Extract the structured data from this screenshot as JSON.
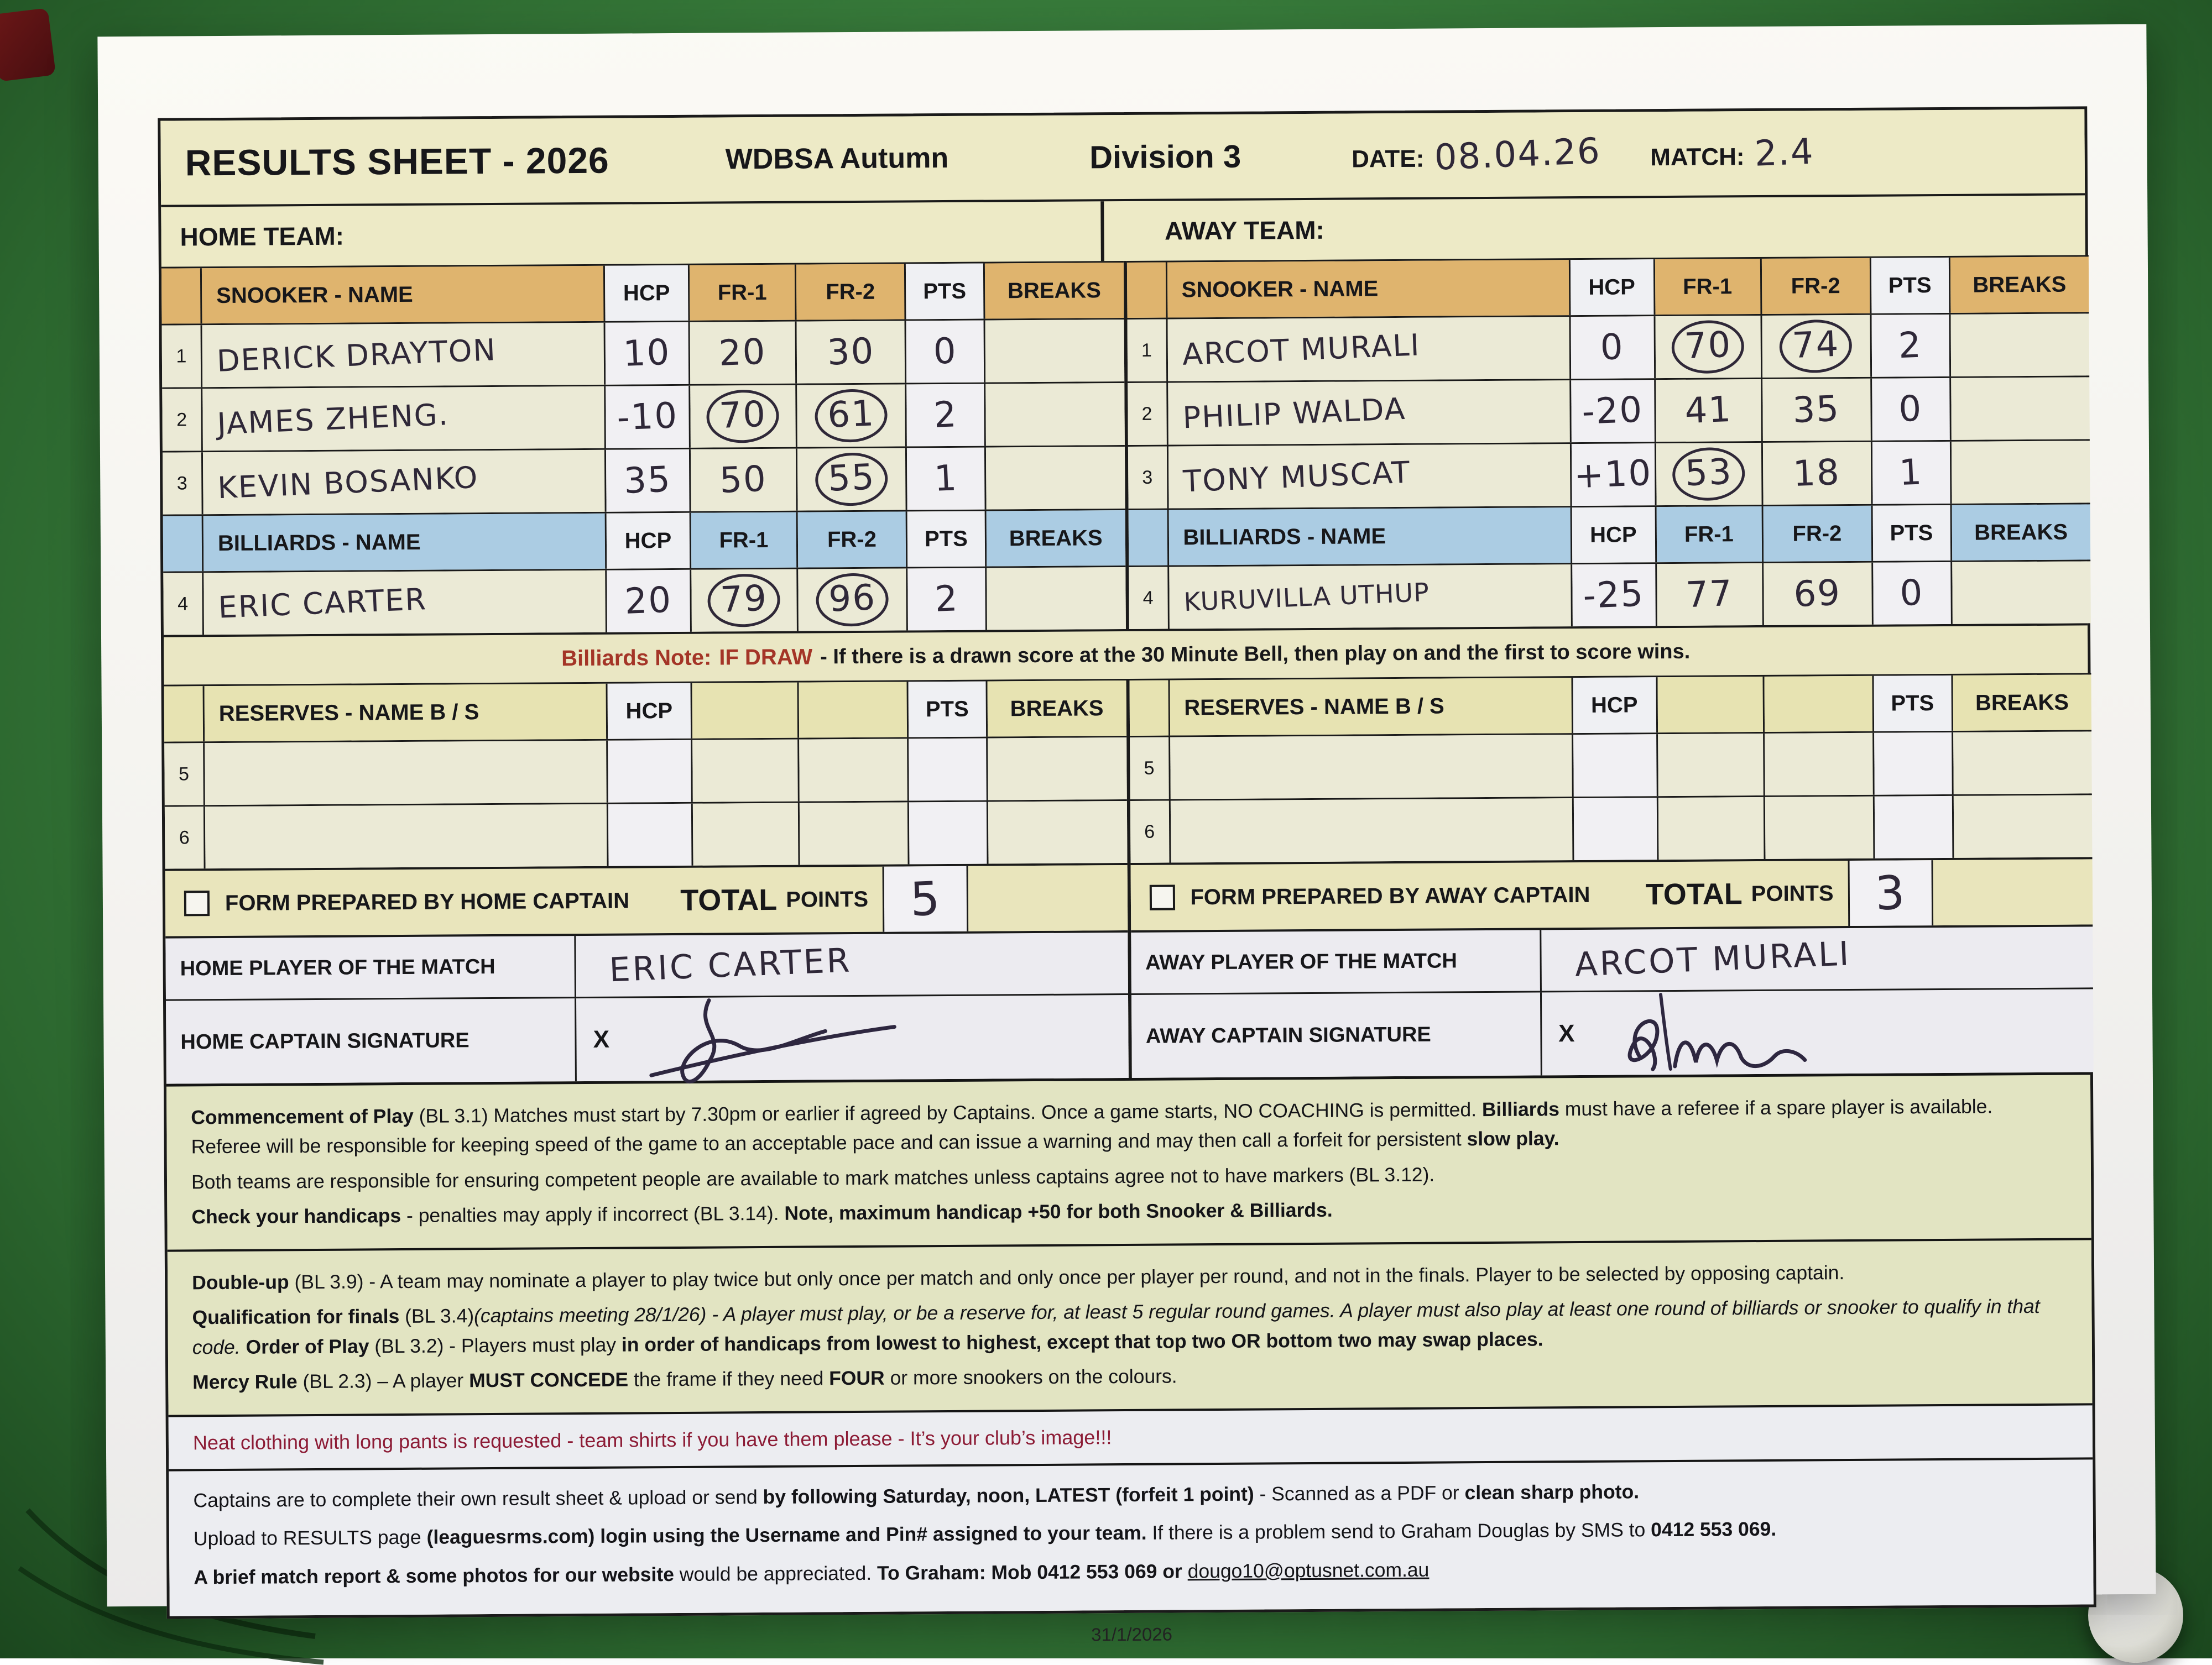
{
  "colors": {
    "felt_green": "#3a7f3d",
    "paper_cream": "#eae7c6",
    "snooker_header_tan": "#dfb46e",
    "billiards_header_blue": "#abcce3",
    "reserves_header_yellow": "#e7e3b2",
    "note_red": "#a43527",
    "dress_note_maroon": "#8c1b35",
    "ink": "#2f2838"
  },
  "header": {
    "title": "RESULTS SHEET - 2026",
    "season": "WDBSA Autumn",
    "division": "Division 3",
    "date_label": "DATE:",
    "date_value": "08.04.26",
    "match_label": "MATCH:",
    "match_value": "2.4"
  },
  "columns": {
    "name_snooker": "SNOOKER  -  NAME",
    "name_billiards": "BILLIARDS  -  NAME",
    "name_reserves": "RESERVES  -  NAME B / S",
    "hcp": "HCP",
    "fr1": "FR-1",
    "fr2": "FR-2",
    "pts": "PTS",
    "breaks": "BREAKS"
  },
  "home": {
    "team_label": "HOME TEAM:",
    "snooker_rows": [
      {
        "num": "1",
        "name": "DERICK DRAYTON",
        "hcp": "10",
        "fr1": "20",
        "fr1_circled": false,
        "fr2": "30",
        "fr2_circled": false,
        "pts": "0"
      },
      {
        "num": "2",
        "name": "JAMES ZHENG.",
        "hcp": "-10",
        "fr1": "70",
        "fr1_circled": true,
        "fr2": "61",
        "fr2_circled": true,
        "pts": "2"
      },
      {
        "num": "3",
        "name": "KEVIN BOSANKO",
        "hcp": "35",
        "fr1": "50",
        "fr1_circled": false,
        "fr2": "55",
        "fr2_circled": true,
        "pts": "1"
      }
    ],
    "billiards_row": {
      "num": "4",
      "name": "ERIC CARTER",
      "hcp": "20",
      "fr1": "79",
      "fr1_circled": true,
      "fr2": "96",
      "fr2_circled": true,
      "pts": "2"
    },
    "reserve_rows": [
      {
        "num": "5"
      },
      {
        "num": "6"
      }
    ],
    "form_prepared_label": "FORM PREPARED BY HOME CAPTAIN",
    "total_label": "TOTAL",
    "points_label": "POINTS",
    "total_value": "5",
    "potm_label": "HOME PLAYER OF THE MATCH",
    "potm_value": "ERIC CARTER",
    "signature_label": "HOME CAPTAIN SIGNATURE",
    "signature_x": "X"
  },
  "away": {
    "team_label": "AWAY TEAM:",
    "snooker_rows": [
      {
        "num": "1",
        "name": "ARCOT MURALI",
        "hcp": "0",
        "fr1": "70",
        "fr1_circled": true,
        "fr2": "74",
        "fr2_circled": true,
        "pts": "2"
      },
      {
        "num": "2",
        "name": "PHILIP WALDA",
        "hcp": "-20",
        "fr1": "41",
        "fr1_circled": false,
        "fr2": "35",
        "fr2_circled": false,
        "pts": "0"
      },
      {
        "num": "3",
        "name": "TONY MUSCAT",
        "hcp": "+10",
        "fr1": "53",
        "fr1_circled": true,
        "fr2": "18",
        "fr2_circled": false,
        "pts": "1"
      }
    ],
    "billiards_row": {
      "num": "4",
      "name": "KURUVILLA UTHUP",
      "hcp": "-25",
      "fr1": "77",
      "fr1_circled": false,
      "fr2": "69",
      "fr2_circled": false,
      "pts": "0"
    },
    "reserve_rows": [
      {
        "num": "5"
      },
      {
        "num": "6"
      }
    ],
    "form_prepared_label": "FORM PREPARED BY AWAY CAPTAIN",
    "total_label": "TOTAL",
    "points_label": "POINTS",
    "total_value": "3",
    "potm_label": "AWAY PLAYER OF THE MATCH",
    "potm_value": "ARCOT MURALI",
    "signature_label": "AWAY CAPTAIN SIGNATURE",
    "signature_x": "X"
  },
  "billiards_note": {
    "label": "Billiards Note:",
    "draw": "IF DRAW",
    "text": "- If there is a drawn score at the 30 Minute Bell, then play on and the first to score wins."
  },
  "rules": {
    "p1": [
      [
        {
          "b": 1,
          "t": "Commencement of Play"
        },
        {
          "t": " (BL 3.1) Matches must start by 7.30pm or earlier if agreed by Captains. Once a game starts, NO COACHING is permitted. "
        },
        {
          "b": 1,
          "t": "Billiards"
        },
        {
          "t": " must have a referee if a spare player is available. Referee will be responsible for keeping speed of the game to an acceptable pace and can issue a warning and may then call a forfeit for persistent "
        },
        {
          "b": 1,
          "t": "slow play."
        }
      ],
      [
        {
          "t": "Both teams are responsible for ensuring competent people are available to mark matches unless captains agree not to have markers (BL 3.12)."
        }
      ],
      [
        {
          "b": 1,
          "t": "Check your handicaps"
        },
        {
          "t": " - penalties may apply if incorrect (BL 3.14). "
        },
        {
          "b": 1,
          "t": "Note, maximum handicap +50 for both Snooker & Billiards."
        }
      ]
    ],
    "p2": [
      [
        {
          "b": 1,
          "t": "Double-up"
        },
        {
          "t": " (BL 3.9) - A team may nominate a player to play twice but only once per match and only once per player per round, and not in the finals. Player to be selected by opposing captain."
        }
      ],
      [
        {
          "b": 1,
          "t": "Qualification for finals"
        },
        {
          "t": " (BL 3.4)"
        },
        {
          "i": 1,
          "t": "(captains meeting 28/1/26) - A player must play, or be a reserve for, at least 5 regular round games. A player must also play at least one round of billiards or snooker to qualify in that code."
        },
        {
          "t": " "
        },
        {
          "b": 1,
          "t": "Order of Play"
        },
        {
          "t": " (BL 3.2) - Players must play "
        },
        {
          "b": 1,
          "t": "in order of handicaps from lowest to highest, except that top two OR bottom two may swap places."
        }
      ],
      [
        {
          "b": 1,
          "t": "Mercy Rule"
        },
        {
          "t": " (BL 2.3) – A player "
        },
        {
          "b": 1,
          "t": "MUST CONCEDE"
        },
        {
          "t": " the frame if they need "
        },
        {
          "b": 1,
          "t": "FOUR"
        },
        {
          "t": " or more snookers on the colours."
        }
      ]
    ],
    "dress": "Neat clothing with long pants is requested - team shirts if you have them please - It’s your club’s image!!!",
    "p4": [
      [
        {
          "t": "Captains are to complete their own result sheet & upload or send "
        },
        {
          "b": 1,
          "t": "by following Saturday, noon, LATEST (forfeit 1 point)"
        },
        {
          "t": " - Scanned as a PDF or "
        },
        {
          "b": 1,
          "t": "clean sharp photo."
        }
      ],
      [
        {
          "t": "Upload to RESULTS page "
        },
        {
          "b": 1,
          "t": "(leaguesrms.com) login using the Username and Pin# assigned to your team."
        },
        {
          "t": " If there is a problem send to Graham Douglas by SMS to "
        },
        {
          "b": 1,
          "t": "0412 553 069."
        }
      ],
      [
        {
          "b": 1,
          "t": "A brief match report & some photos for our website"
        },
        {
          "t": " would be appreciated. "
        },
        {
          "b": 1,
          "t": "To Graham: Mob 0412 553 069 or "
        },
        {
          "u": 1,
          "t": "dougo10@optusnet.com.au"
        }
      ]
    ]
  },
  "page": {
    "footer_date": "31/1/2026"
  }
}
